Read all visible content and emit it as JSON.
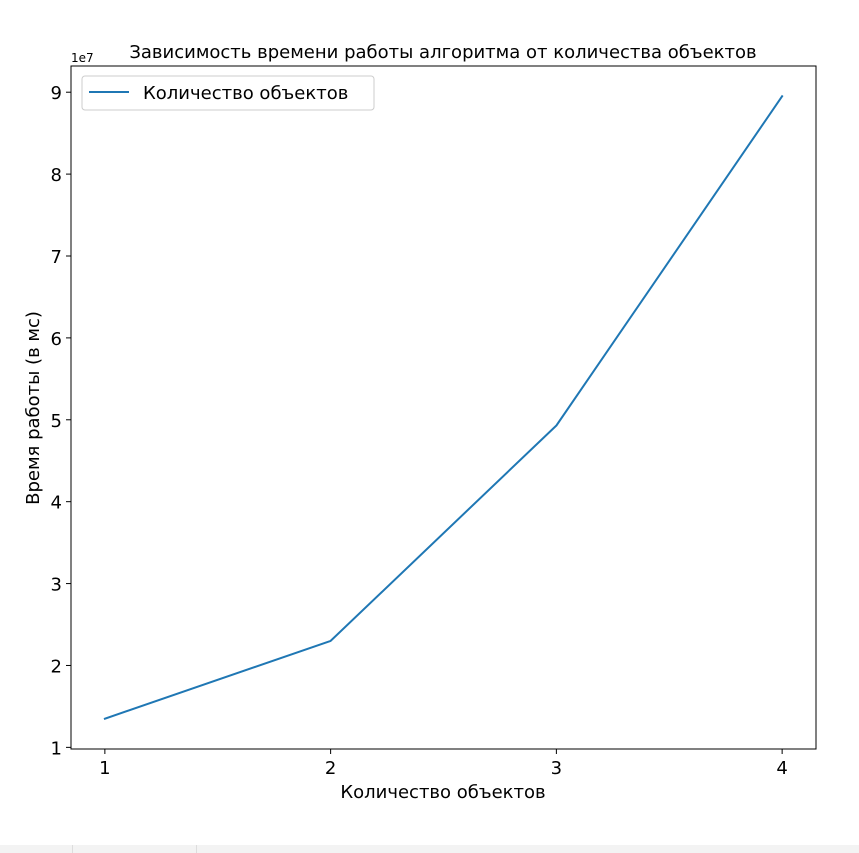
{
  "chart_data": {
    "type": "line",
    "title": "Зависимость времени работы алгоритма от количества объектов",
    "xlabel": "Количество объектов",
    "ylabel": "Время работы (в мс)",
    "y_offset_label": "1e7",
    "x": [
      1,
      2,
      3,
      4
    ],
    "x_tick_labels": [
      "1",
      "2",
      "3",
      "4"
    ],
    "y_tick_labels": [
      "1",
      "2",
      "3",
      "4",
      "5",
      "6",
      "7",
      "8",
      "9"
    ],
    "series": [
      {
        "name": "Количество объектов",
        "values": [
          13500000,
          23000000,
          49300000,
          89500000
        ],
        "color": "#1f77b4"
      }
    ],
    "xlim": [
      0.85,
      4.15
    ],
    "ylim": [
      9800000,
      93200000
    ],
    "y_ticks": [
      10000000,
      20000000,
      30000000,
      40000000,
      50000000,
      60000000,
      70000000,
      80000000,
      90000000
    ],
    "grid": false,
    "legend_position": "top-left"
  }
}
